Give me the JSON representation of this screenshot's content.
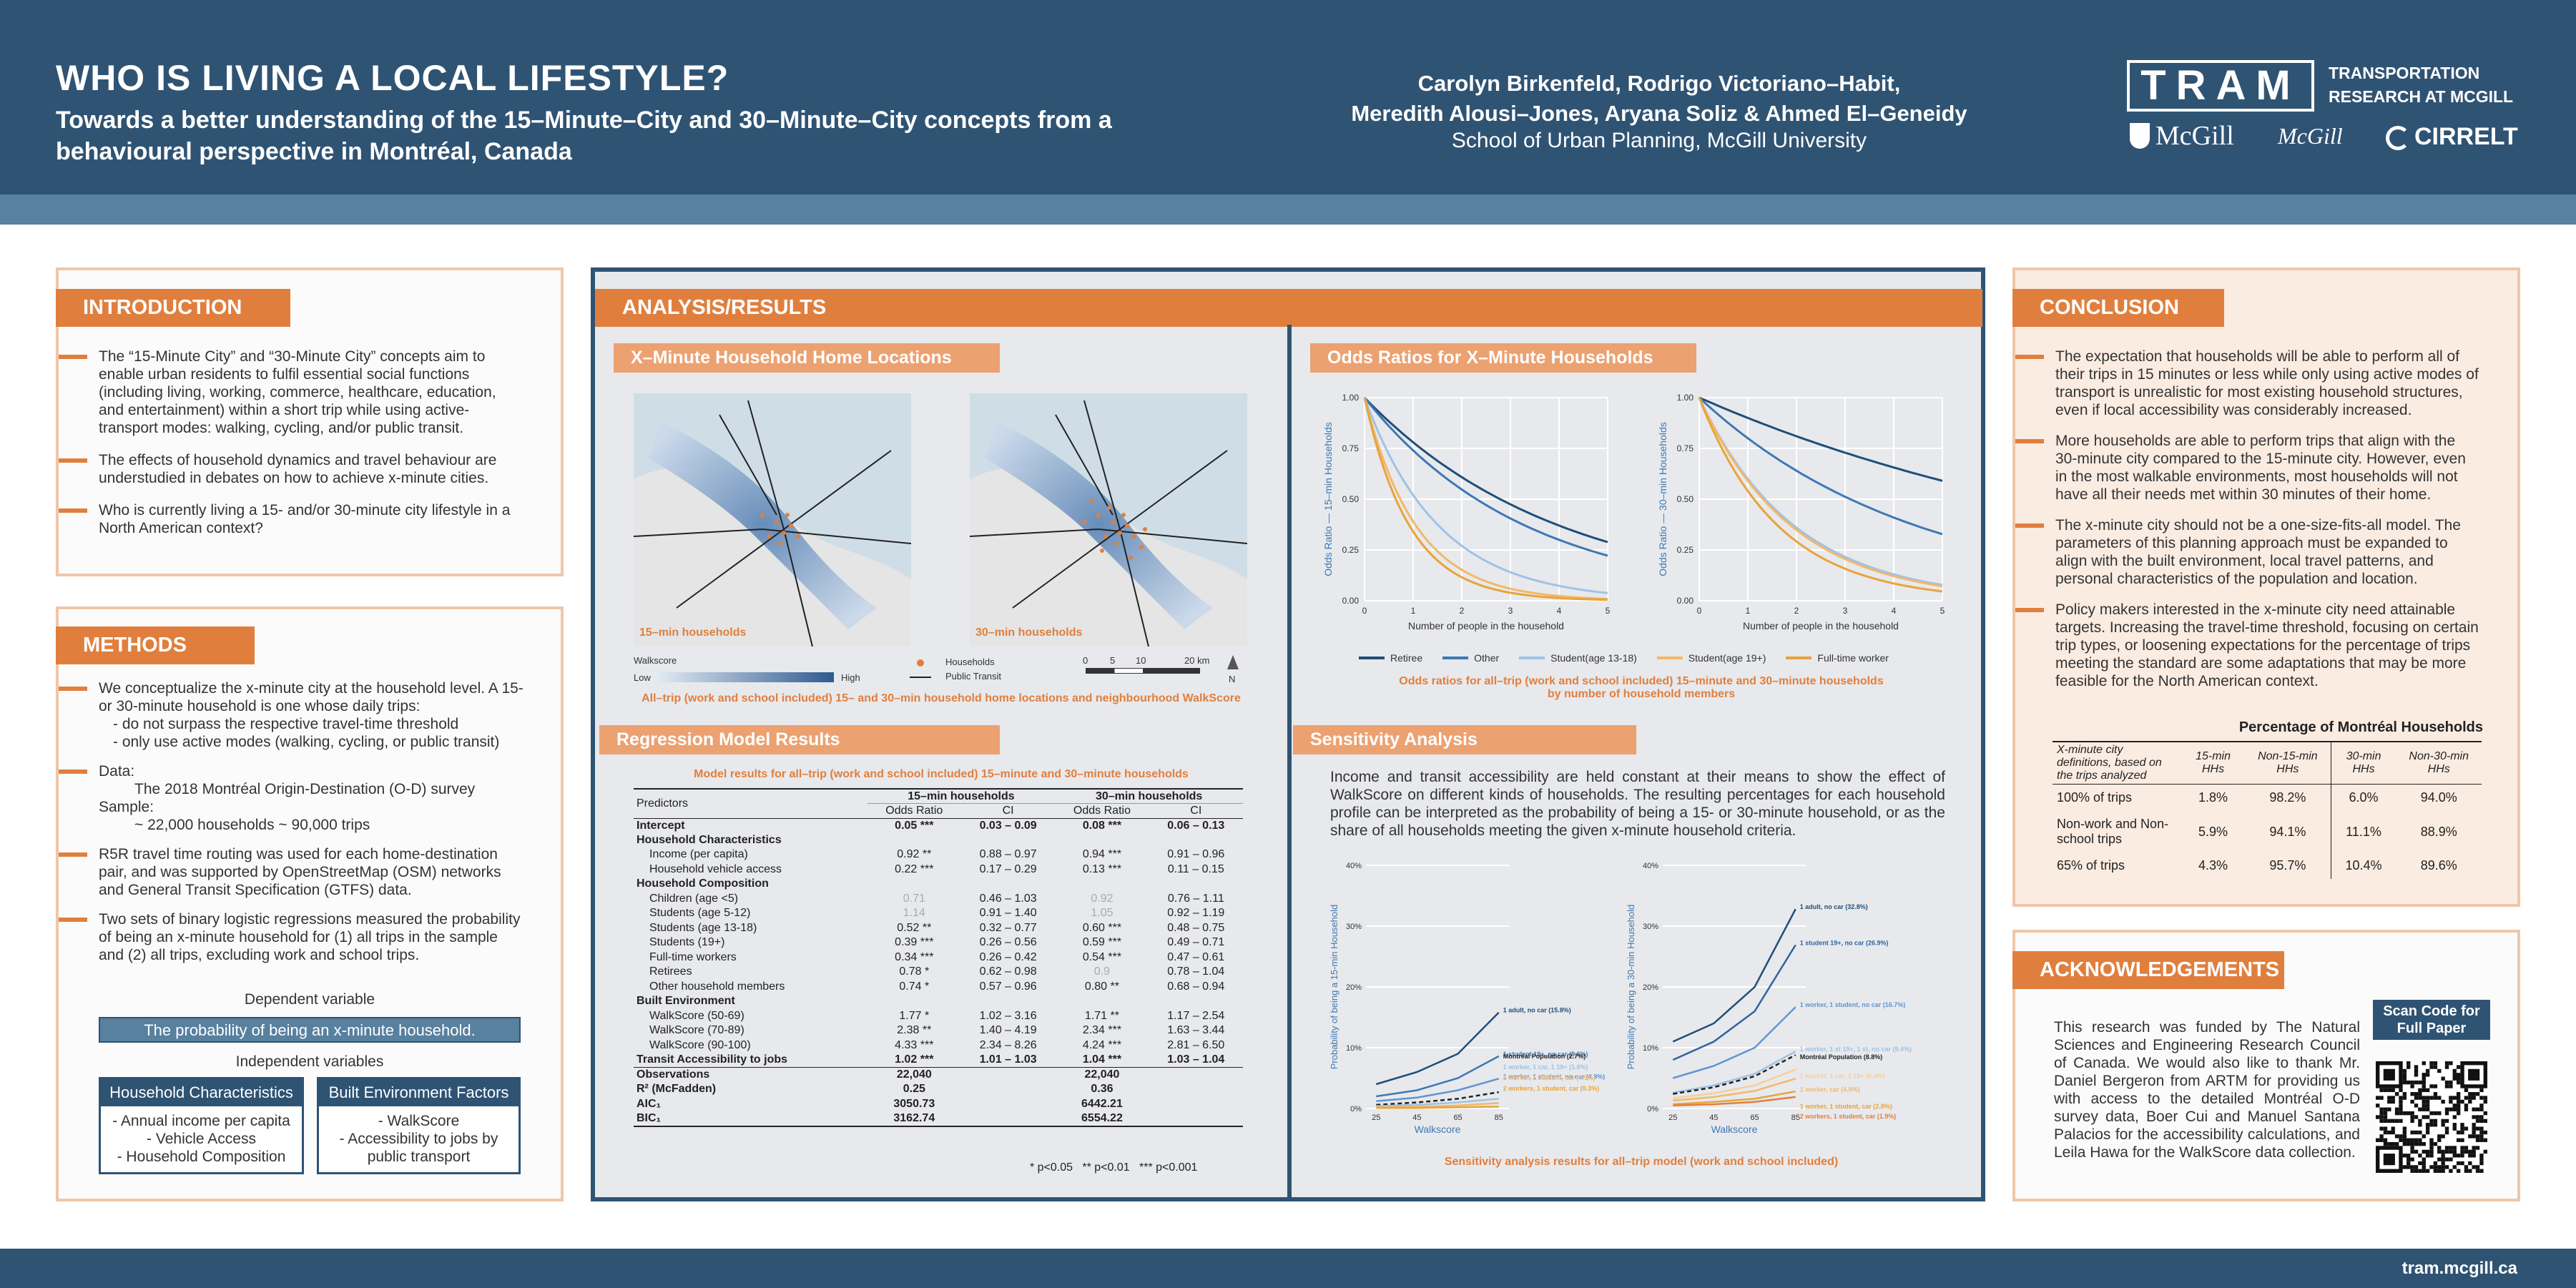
{
  "header": {
    "title": "WHO IS LIVING A LOCAL LIFESTYLE?",
    "subtitle": "Towards a better understanding of the 15–Minute–City and 30–Minute–City concepts from a behavioural perspective in Montréal, Canada",
    "authors_line1": "Carolyn Birkenfeld, Rodrigo Victoriano–Habit,",
    "authors_line2": "Meredith Alousi–Jones, Aryana Soliz & Ahmed El–Geneidy",
    "affiliation": "School of Urban Planning, McGill University",
    "logo_tram": "TRAM",
    "logo_tram_sub1": "TRANSPORTATION",
    "logo_tram_sub2": "RESEARCH AT MCGILL",
    "logo_mcgill": "McGill",
    "logo_cirrelt": "CIRRELT"
  },
  "footer": {
    "url": "tram.mcgill.ca"
  },
  "intro": {
    "heading": "INTRODUCTION",
    "bullets": [
      "The “15-Minute City” and “30-Minute City” concepts aim to enable urban residents to fulfil essential social functions (including living, working, commerce, healthcare, education, and entertainment) within a short trip while using active-transport modes: walking, cycling, and/or public transit.",
      "The effects of household dynamics and travel behaviour are understudied in debates on how to achieve x-minute cities.",
      "Who is currently living a 15- and/or 30-minute city lifestyle in a North American context?"
    ]
  },
  "methods": {
    "heading": "METHODS",
    "b1": "We conceptualize the x-minute city at the household level. A 15- or 30-minute household is one whose daily trips:",
    "b1_sub1": "- do not surpass the respective travel-time threshold",
    "b1_sub2": "- only use active modes (walking, cycling, or public transit)",
    "b2_label": "Data:",
    "b2_l1": "The 2018 Montréal Origin-Destination (O-D) survey",
    "b2_l2": "Sample:",
    "b2_l3": "~ 22,000 households ~ 90,000 trips",
    "b3": "R5R travel time routing was used for each home-destination pair, and was supported by OpenStreetMap (OSM) networks and General Transit Specification (GTFS) data.",
    "b4": "Two sets of binary logistic regressions measured the probability of being an x-minute household for (1) all trips in the sample and (2) all trips, excluding work and school trips.",
    "dep_label": "Dependent variable",
    "dep_value": "The probability of being an x-minute household.",
    "indep_label": "Independent variables",
    "hh_title": "Household Characteristics",
    "hh_items": [
      "- Annual income per capita",
      "- Vehicle Access",
      "- Household Composition"
    ],
    "be_title": "Built Environment Factors",
    "be_items": [
      "- WalkScore",
      "- Accessibility to jobs by public transport"
    ]
  },
  "analysis": {
    "heading": "ANALYSIS/RESULTS",
    "maps_heading": "X–Minute Household Home Locations",
    "map1_label": "15–min households",
    "map2_label": "30–min households",
    "legend_walkscore": "Walkscore",
    "legend_low": "Low",
    "legend_high": "High",
    "legend_households": "Households",
    "legend_transit": "Public Transit",
    "scale_ticks": [
      "0",
      "5",
      "10",
      "20 km"
    ],
    "north": "N",
    "maps_caption": "All–trip (work and school included) 15– and 30–min household home locations and neighbourhood WalkScore"
  },
  "odds": {
    "heading": "Odds Ratios for X–Minute Households",
    "ylabel1": "Odds Ratio — 15–min Households",
    "ylabel2": "Odds Ratio — 30–min Households",
    "xlabel": "Number of people in the household",
    "yticks": [
      "1.00",
      "0.75",
      "0.50",
      "0.25",
      "0.00"
    ],
    "xticks": [
      "0",
      "1",
      "2",
      "3",
      "4",
      "5"
    ],
    "legend": [
      "Retiree",
      "Other",
      "Student(age 13-18)",
      "Student(age 19+)",
      "Full-time worker"
    ],
    "caption_l1": "Odds ratios for all–trip (work and school included) 15–minute and 30–minute households",
    "caption_l2": "by number of household members"
  },
  "regression": {
    "heading": "Regression Model Results",
    "caption": "Model results for all–trip (work and school included) 15–minute and 30–minute households",
    "col_predictors": "Predictors",
    "group1": "15–min households",
    "group2": "30–min households",
    "col_or": "Odds Ratio",
    "col_ci": "CI",
    "rows": [
      {
        "p": "Intercept",
        "a": "0.05 ***",
        "b": "0.03 – 0.09",
        "c": "0.08 ***",
        "d": "0.06 – 0.13",
        "t": "b"
      },
      {
        "p": "Household Characteristics",
        "a": "",
        "b": "",
        "c": "",
        "d": "",
        "t": "h"
      },
      {
        "p": "Income (per capita)",
        "a": "0.92 **",
        "b": "0.88 – 0.97",
        "c": "0.94 ***",
        "d": "0.91 – 0.96",
        "t": "i"
      },
      {
        "p": "Household vehicle access",
        "a": "0.22 ***",
        "b": "0.17 – 0.29",
        "c": "0.13 ***",
        "d": "0.11 – 0.15",
        "t": "i"
      },
      {
        "p": "Household Composition",
        "a": "",
        "b": "",
        "c": "",
        "d": "",
        "t": "h"
      },
      {
        "p": "Children (age <5)",
        "a": "0.71",
        "b": "0.46 – 1.03",
        "c": "0.92",
        "d": "0.76 – 1.11",
        "t": "ig"
      },
      {
        "p": "Students (age 5-12)",
        "a": "1.14",
        "b": "0.91 – 1.40",
        "c": "1.05",
        "d": "0.92 – 1.19",
        "t": "ig"
      },
      {
        "p": "Students (age 13-18)",
        "a": "0.52 **",
        "b": "0.32 – 0.77",
        "c": "0.60 ***",
        "d": "0.48 – 0.75",
        "t": "i"
      },
      {
        "p": "Students (19+)",
        "a": "0.39 ***",
        "b": "0.26 – 0.56",
        "c": "0.59 ***",
        "d": "0.49 – 0.71",
        "t": "i"
      },
      {
        "p": "Full-time workers",
        "a": "0.34 ***",
        "b": "0.26 – 0.42",
        "c": "0.54 ***",
        "d": "0.47 – 0.61",
        "t": "i"
      },
      {
        "p": "Retirees",
        "a": "0.78 *",
        "b": "0.62 – 0.98",
        "c": "0.9",
        "d": "0.78 – 1.04",
        "t": "ig2"
      },
      {
        "p": "Other household members",
        "a": "0.74 *",
        "b": "0.57 – 0.96",
        "c": "0.80 **",
        "d": "0.68 – 0.94",
        "t": "i"
      },
      {
        "p": "Built Environment",
        "a": "",
        "b": "",
        "c": "",
        "d": "",
        "t": "h"
      },
      {
        "p": "WalkScore (50-69)",
        "a": "1.77 *",
        "b": "1.02 – 3.16",
        "c": "1.71 **",
        "d": "1.17 – 2.54",
        "t": "i"
      },
      {
        "p": "WalkScore (70-89)",
        "a": "2.38 **",
        "b": "1.40 – 4.19",
        "c": "2.34 ***",
        "d": "1.63 – 3.44",
        "t": "i"
      },
      {
        "p": "WalkScore (90-100)",
        "a": "4.33 ***",
        "b": "2.34 – 8.26",
        "c": "4.24 ***",
        "d": "2.81 – 6.50",
        "t": "i"
      },
      {
        "p": "Transit Accessibility to jobs",
        "a": "1.02 ***",
        "b": "1.01 – 1.03",
        "c": "1.04 ***",
        "d": "1.03 – 1.04",
        "t": "b"
      },
      {
        "p": "Observations",
        "a": "22,040",
        "b": "",
        "c": "22,040",
        "d": "",
        "t": "b"
      },
      {
        "p": "R² (McFadden)",
        "a": "0.25",
        "b": "",
        "c": "0.36",
        "d": "",
        "t": "b"
      },
      {
        "p": "AIC₁",
        "a": "3050.73",
        "b": "",
        "c": "6442.21",
        "d": "",
        "t": "b"
      },
      {
        "p": "BIC₁",
        "a": "3162.74",
        "b": "",
        "c": "6554.22",
        "d": "",
        "t": "b"
      }
    ],
    "footnote": "* p<0.05   ** p<0.01   *** p<0.001"
  },
  "sensitivity": {
    "heading": "Sensitivity Analysis",
    "text": "Income and transit accessibility are held constant at their means to show the effect of WalkScore on different kinds of households. The resulting percentages for each household profile can be interpreted as the probability of being a 15- or 30-minute household, or as the share of all households meeting the given x-minute household criteria.",
    "ylabel1": "Probability of being a 15-min Household",
    "ylabel2": "Probability of being a 30-min Household",
    "xlabel": "Walkscore",
    "yticks": [
      "40%",
      "30%",
      "20%",
      "10%",
      "0%"
    ],
    "xticks": [
      "25",
      "45",
      "65",
      "85"
    ],
    "labels1": [
      "1 adult, no car (15.8%)",
      "1 student 19+, no car (8.6%)",
      "1 worker, 1 student, no car (4.9%)",
      "Montréal Population (2.7%)",
      "1 worker, 1 car, 1 19+ (1.6%)",
      "1 worker, 1 student, car (0.9%)",
      "2 workers, 1 student, car (0.3%)"
    ],
    "labels2": [
      "1 adult, no car (32.8%)",
      "1 student 19+, no car (26.9%)",
      "1 worker, 1 student, no car (16.7%)",
      "1 worker, 1 st 19+, 1 st, no car (9.4%)",
      "Montréal Population (8.8%)",
      "1 worker, 1 car, 1 19+ (6.4%)",
      "1 worker, car (4.9%)",
      "1 worker, 1 student, car (2.8%)",
      "2 workers, 1 student, car (1.9%)"
    ],
    "caption": "Sensitivity analysis results for all–trip model (work and school included)"
  },
  "conclusion": {
    "heading": "CONCLUSION",
    "bullets": [
      "The expectation that households will be able to perform all of their trips in 15 minutes or less while only using active modes of transport is unrealistic for most existing household structures, even if local accessibility was considerably increased.",
      "More households are able to perform trips that align with the 30-minute city compared to the 15-minute city. However, even in the most walkable environments, most households will not have all their needs met within 30 minutes of their home.",
      "The x-minute city should not be a one-size-fits-all model. The parameters of this planning approach must be expanded to align with the built environment, local travel patterns, and personal characteristics of the population and location.",
      "Policy makers interested in the x-minute city need attainable targets. Increasing the travel-time threshold, focusing on certain trip types, or loosening expectations for the percentage of trips meeting the standard are some adaptations that may be more feasible for the North American context."
    ],
    "table_title": "Percentage of Montréal Households",
    "table_head": [
      "X-minute city definitions, based on the trips analyzed",
      "15-min HHs",
      "Non-15-min HHs",
      "30-min HHs",
      "Non-30-min HHs"
    ],
    "table_rows": [
      [
        "100% of trips",
        "1.8%",
        "98.2%",
        "6.0%",
        "94.0%"
      ],
      [
        "Non-work and Non-school trips",
        "5.9%",
        "94.1%",
        "11.1%",
        "88.9%"
      ],
      [
        "65% of trips",
        "4.3%",
        "95.7%",
        "10.4%",
        "89.6%"
      ]
    ]
  },
  "ack": {
    "heading": "ACKNOWLEDGEMENTS",
    "text": "This research was funded by The Natural Sciences and Engineering Research Council of Canada. We would also like to thank Mr. Daniel Bergeron from ARTM for providing us with access to the detailed Montréal O-D survey data, Boer Cui and Manuel Santana Palacios for the accessibility calculations, and Leila Hawa for the WalkScore data collection.",
    "qr_label": "Scan Code for Full Paper"
  },
  "colors": {
    "navy": "#2f5373",
    "orange": "#e07f3d",
    "peach": "#eca171"
  },
  "chart_data": [
    {
      "type": "line",
      "title": "Odds Ratios for X–Minute Households (15-min)",
      "xlabel": "Number of people in the household",
      "ylabel": "Odds Ratio — 15–min Households",
      "ylim": [
        0,
        1
      ],
      "xlim": [
        0,
        5
      ],
      "x": [
        0,
        1,
        2,
        3,
        4,
        5
      ],
      "series": [
        {
          "name": "Retiree",
          "values": [
            1,
            0.78,
            0.61,
            0.47,
            0.37,
            0.29
          ]
        },
        {
          "name": "Other",
          "values": [
            1,
            0.74,
            0.55,
            0.41,
            0.3,
            0.22
          ]
        },
        {
          "name": "Student(age 13-18)",
          "values": [
            1,
            0.52,
            0.27,
            0.14,
            0.07,
            0.04
          ]
        },
        {
          "name": "Student(age 19+)",
          "values": [
            1,
            0.39,
            0.15,
            0.06,
            0.02,
            0.01
          ]
        },
        {
          "name": "Full-time worker",
          "values": [
            1,
            0.34,
            0.12,
            0.04,
            0.01,
            0.0
          ]
        }
      ]
    },
    {
      "type": "line",
      "title": "Odds Ratios for X–Minute Households (30-min)",
      "xlabel": "Number of people in the household",
      "ylabel": "Odds Ratio — 30–min Households",
      "ylim": [
        0,
        1
      ],
      "xlim": [
        0,
        5
      ],
      "x": [
        0,
        1,
        2,
        3,
        4,
        5
      ],
      "series": [
        {
          "name": "Retiree",
          "values": [
            1,
            0.9,
            0.81,
            0.73,
            0.66,
            0.59
          ]
        },
        {
          "name": "Other",
          "values": [
            1,
            0.8,
            0.64,
            0.51,
            0.41,
            0.33
          ]
        },
        {
          "name": "Student(age 13-18)",
          "values": [
            1,
            0.6,
            0.36,
            0.22,
            0.13,
            0.08
          ]
        },
        {
          "name": "Student(age 19+)",
          "values": [
            1,
            0.59,
            0.35,
            0.21,
            0.12,
            0.07
          ]
        },
        {
          "name": "Full-time worker",
          "values": [
            1,
            0.54,
            0.29,
            0.16,
            0.09,
            0.05
          ]
        }
      ]
    },
    {
      "type": "line",
      "title": "Sensitivity Analysis (15-min)",
      "xlabel": "Walkscore",
      "ylabel": "Probability of being a 15-min Household",
      "ylim": [
        0,
        40
      ],
      "x": [
        25,
        45,
        65,
        85
      ],
      "series": [
        {
          "name": "1 adult, no car",
          "values": [
            4,
            6,
            9,
            15.8
          ]
        },
        {
          "name": "1 student 19+, no car",
          "values": [
            2,
            3,
            5,
            8.6
          ]
        },
        {
          "name": "1 worker, 1 student, no car",
          "values": [
            1.2,
            1.8,
            3,
            4.9
          ]
        },
        {
          "name": "Montréal Population",
          "values": [
            0.6,
            1,
            1.6,
            2.7
          ]
        },
        {
          "name": "1 worker, 1 car, 1 19+",
          "values": [
            0.4,
            0.6,
            1,
            1.6
          ]
        },
        {
          "name": "1 worker, 1 student, car",
          "values": [
            0.2,
            0.3,
            0.5,
            0.9
          ]
        },
        {
          "name": "2 workers, 1 student, car",
          "values": [
            0.1,
            0.1,
            0.2,
            0.3
          ]
        }
      ]
    },
    {
      "type": "line",
      "title": "Sensitivity Analysis (30-min)",
      "xlabel": "Walkscore",
      "ylabel": "Probability of being a 30-min Household",
      "ylim": [
        0,
        40
      ],
      "x": [
        25,
        45,
        65,
        85
      ],
      "series": [
        {
          "name": "1 adult, no car",
          "values": [
            11,
            14,
            20,
            32.8
          ]
        },
        {
          "name": "1 student 19+, no car",
          "values": [
            8,
            11,
            16,
            26.9
          ]
        },
        {
          "name": "1 worker, 1 student, no car",
          "values": [
            5,
            7,
            10,
            16.7
          ]
        },
        {
          "name": "1 worker, 1 st 19+, 1 st, no car",
          "values": [
            2.6,
            3.8,
            5.7,
            9.4
          ]
        },
        {
          "name": "Montréal Population",
          "values": [
            2.4,
            3.5,
            5.3,
            8.8
          ]
        },
        {
          "name": "1 worker, 1 car, 1 19+",
          "values": [
            1.7,
            2.5,
            3.8,
            6.4
          ]
        },
        {
          "name": "1 worker, car",
          "values": [
            1.3,
            1.9,
            2.9,
            4.9
          ]
        },
        {
          "name": "1 worker, 1 student, car",
          "values": [
            0.7,
            1.1,
            1.6,
            2.8
          ]
        },
        {
          "name": "2 workers, 1 student, car",
          "values": [
            0.5,
            0.7,
            1.1,
            1.9
          ]
        }
      ]
    }
  ]
}
